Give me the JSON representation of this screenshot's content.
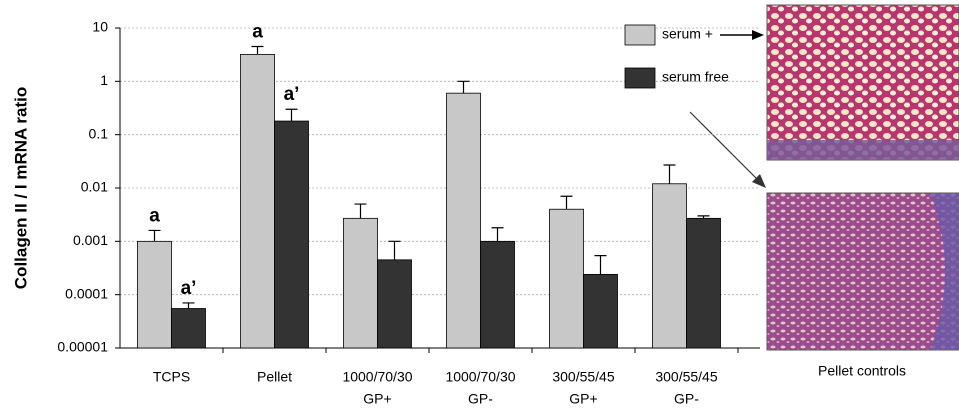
{
  "chart_data": {
    "type": "bar",
    "scale": "log",
    "y_label": "Collagen II / I mRNA ratio",
    "categories": [
      [
        "TCPS"
      ],
      [
        "Pellet"
      ],
      [
        "1000/70/30",
        "GP+"
      ],
      [
        "1000/70/30",
        "GP-"
      ],
      [
        "300/55/45",
        "GP+"
      ],
      [
        "300/55/45",
        "GP-"
      ]
    ],
    "series": [
      {
        "name": "serum +",
        "color": "#c8c8c8",
        "values": [
          0.001,
          3.2,
          0.0027,
          0.6,
          0.004,
          0.012
        ],
        "errors": [
          0.0006,
          1.3,
          0.0023,
          0.4,
          0.003,
          0.015
        ],
        "annotations": [
          "a",
          "a",
          null,
          null,
          null,
          null
        ]
      },
      {
        "name": "serum free",
        "color": "#333333",
        "values": [
          5.5e-05,
          0.18,
          0.00045,
          0.001,
          0.00024,
          0.0027
        ],
        "errors": [
          1.5e-05,
          0.12,
          0.00055,
          0.0008,
          0.0003,
          0.0003
        ],
        "annotations": [
          "a’",
          "a’",
          null,
          null,
          null,
          null
        ]
      }
    ],
    "ylim": [
      1e-05,
      10
    ],
    "yticks": [
      10,
      1,
      0.1,
      0.01,
      0.001,
      0.0001,
      1e-05
    ],
    "grid": true,
    "legend": "upper right",
    "image_caption": "Pellet controls"
  }
}
